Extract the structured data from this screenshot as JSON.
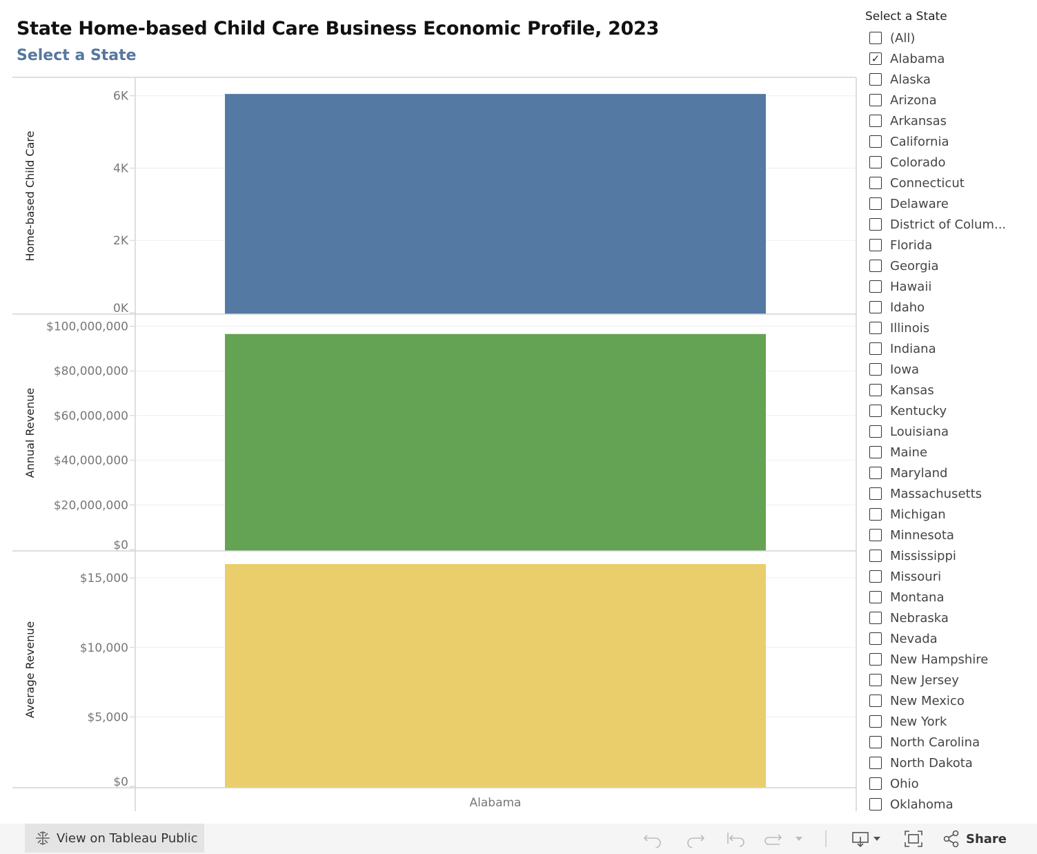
{
  "title": "State Home-based Child Care Business Economic Profile, 2023",
  "subtitle": "Select a State",
  "filter": {
    "title": "Select a State",
    "items": [
      {
        "label": "(All)",
        "checked": false
      },
      {
        "label": "Alabama",
        "checked": true
      },
      {
        "label": "Alaska",
        "checked": false
      },
      {
        "label": "Arizona",
        "checked": false
      },
      {
        "label": "Arkansas",
        "checked": false
      },
      {
        "label": "California",
        "checked": false
      },
      {
        "label": "Colorado",
        "checked": false
      },
      {
        "label": "Connecticut",
        "checked": false
      },
      {
        "label": "Delaware",
        "checked": false
      },
      {
        "label": "District of Colum...",
        "checked": false
      },
      {
        "label": "Florida",
        "checked": false
      },
      {
        "label": "Georgia",
        "checked": false
      },
      {
        "label": "Hawaii",
        "checked": false
      },
      {
        "label": "Idaho",
        "checked": false
      },
      {
        "label": "Illinois",
        "checked": false
      },
      {
        "label": "Indiana",
        "checked": false
      },
      {
        "label": "Iowa",
        "checked": false
      },
      {
        "label": "Kansas",
        "checked": false
      },
      {
        "label": "Kentucky",
        "checked": false
      },
      {
        "label": "Louisiana",
        "checked": false
      },
      {
        "label": "Maine",
        "checked": false
      },
      {
        "label": "Maryland",
        "checked": false
      },
      {
        "label": "Massachusetts",
        "checked": false
      },
      {
        "label": "Michigan",
        "checked": false
      },
      {
        "label": "Minnesota",
        "checked": false
      },
      {
        "label": "Mississippi",
        "checked": false
      },
      {
        "label": "Missouri",
        "checked": false
      },
      {
        "label": "Montana",
        "checked": false
      },
      {
        "label": "Nebraska",
        "checked": false
      },
      {
        "label": "Nevada",
        "checked": false
      },
      {
        "label": "New Hampshire",
        "checked": false
      },
      {
        "label": "New Jersey",
        "checked": false
      },
      {
        "label": "New Mexico",
        "checked": false
      },
      {
        "label": "New York",
        "checked": false
      },
      {
        "label": "North Carolina",
        "checked": false
      },
      {
        "label": "North Dakota",
        "checked": false
      },
      {
        "label": "Ohio",
        "checked": false
      },
      {
        "label": "Oklahoma",
        "checked": false
      }
    ]
  },
  "chart_data": {
    "type": "bar",
    "categories": [
      "Alabama"
    ],
    "xlabel": "",
    "panels": [
      {
        "ylabel": "Home-based Child Care",
        "values": [
          6050
        ],
        "ylim": [
          0,
          6300
        ],
        "ticks": [
          0,
          2000,
          4000,
          6000
        ],
        "tick_labels": [
          "0K",
          "2K",
          "4K",
          "6K"
        ],
        "color": "#5479a3"
      },
      {
        "ylabel": "Annual Revenue",
        "values": [
          96500000
        ],
        "ylim": [
          0,
          102000000
        ],
        "ticks": [
          0,
          20000000,
          40000000,
          60000000,
          80000000,
          100000000
        ],
        "tick_labels": [
          "$0",
          "$20,000,000",
          "$40,000,000",
          "$60,000,000",
          "$80,000,000",
          "$100,000,000"
        ],
        "color": "#64a354"
      },
      {
        "ylabel": "Average Revenue",
        "values": [
          16000
        ],
        "ylim": [
          0,
          16400
        ],
        "ticks": [
          0,
          5000,
          10000,
          15000
        ],
        "tick_labels": [
          "$0",
          "$5,000",
          "$10,000",
          "$15,000"
        ],
        "color": "#eace6c"
      }
    ],
    "grid": true,
    "legend": "none"
  },
  "toolbar": {
    "view_label": "View on Tableau Public",
    "share_label": "Share",
    "icons": [
      "tableau-logo-icon",
      "undo-icon",
      "redo-icon",
      "revert-icon",
      "refresh-icon",
      "dropdown-icon",
      "download-icon",
      "fullscreen-icon",
      "share-icon"
    ]
  }
}
